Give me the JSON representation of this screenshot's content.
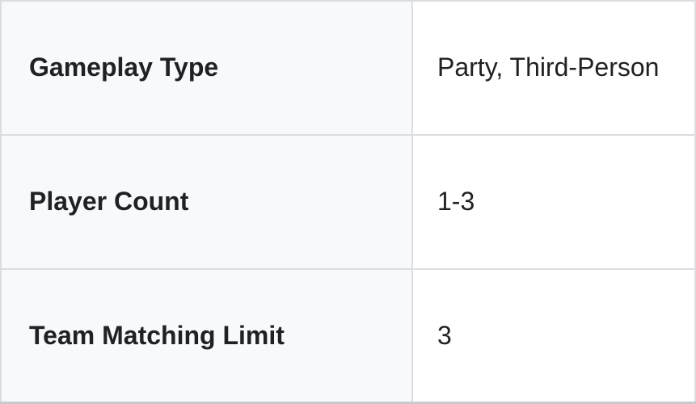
{
  "table": {
    "rows": [
      {
        "label": "Gameplay Type",
        "value": "Party, Third-Person"
      },
      {
        "label": "Player Count",
        "value": "1-3"
      },
      {
        "label": "Team Matching Limit",
        "value": "3"
      }
    ]
  },
  "colors": {
    "label_cell_bg": "#f8f9fa",
    "value_cell_bg": "#ffffff",
    "inner_border": "#dcdde0",
    "outer_border": "#c9cacd",
    "text": "#202122"
  }
}
